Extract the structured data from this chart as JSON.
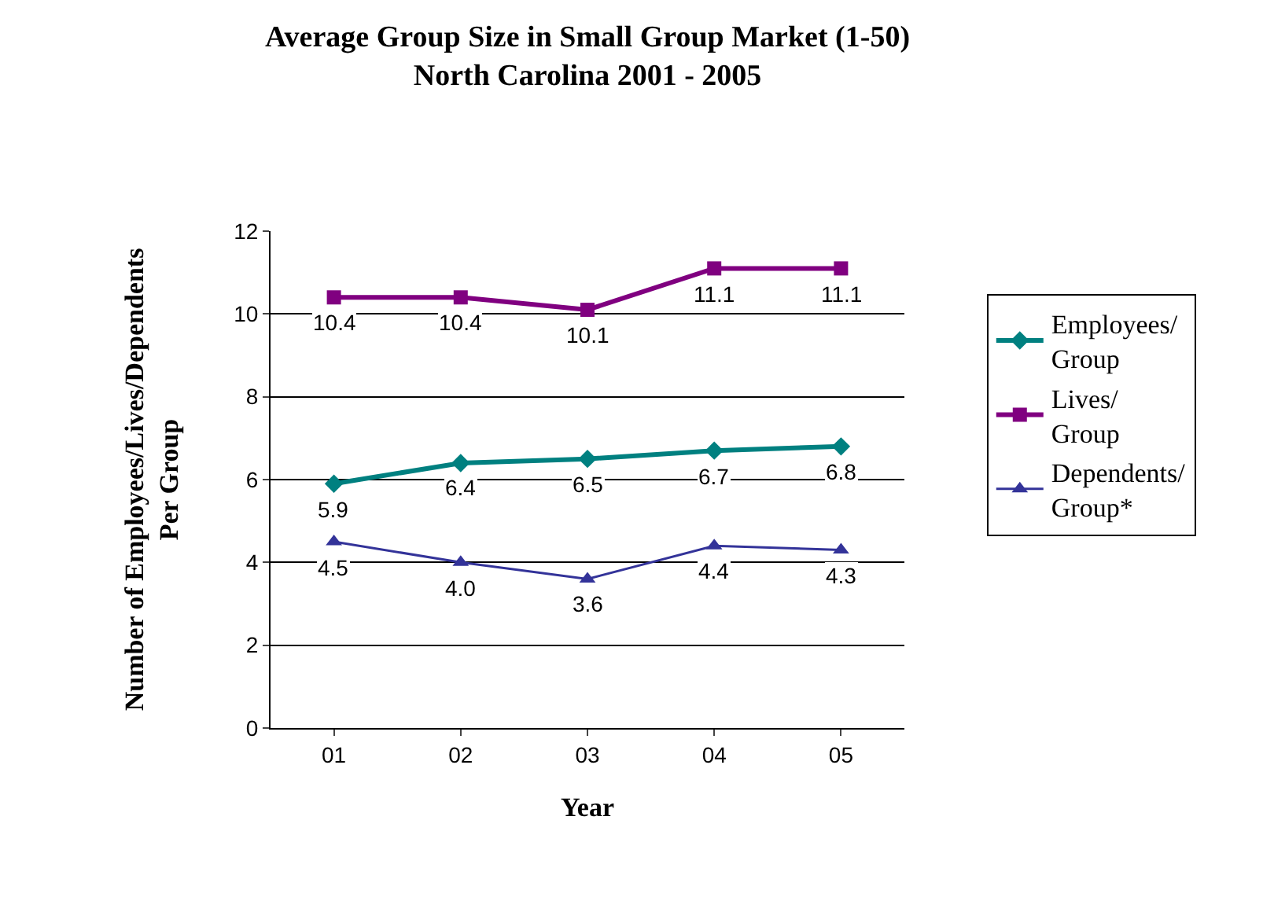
{
  "chart_data": {
    "type": "line",
    "title": "Average Group Size in Small Group Market (1-50)",
    "subtitle": "North Carolina 2001 - 2005",
    "xlabel": "Year",
    "ylabel": "Number of Employees/Lives/Dependents Per Group",
    "categories": [
      "01",
      "02",
      "03",
      "04",
      "05"
    ],
    "series": [
      {
        "name": "Employees/ Group",
        "color": "#008080",
        "marker": "diamond",
        "values": [
          5.9,
          6.4,
          6.5,
          6.7,
          6.8
        ],
        "value_labels": [
          "5.9",
          "6.4",
          "6.5",
          "6.7",
          "6.8"
        ]
      },
      {
        "name": "Lives/ Group",
        "color": "#800080",
        "marker": "square",
        "values": [
          10.4,
          10.4,
          10.1,
          11.1,
          11.1
        ],
        "value_labels": [
          "10.4",
          "10.4",
          "10.1",
          "11.1",
          "11.1"
        ]
      },
      {
        "name": "Dependents/ Group*",
        "color": "#333399",
        "marker": "triangle",
        "values": [
          4.5,
          4.0,
          3.6,
          4.4,
          4.3
        ],
        "value_labels": [
          "4.5",
          "4.0",
          "3.6",
          "4.4",
          "4.3"
        ]
      }
    ],
    "ylim": [
      0,
      12
    ],
    "yticks": [
      0,
      2,
      4,
      6,
      8,
      10,
      12
    ],
    "grid": "y",
    "legend": "right"
  }
}
